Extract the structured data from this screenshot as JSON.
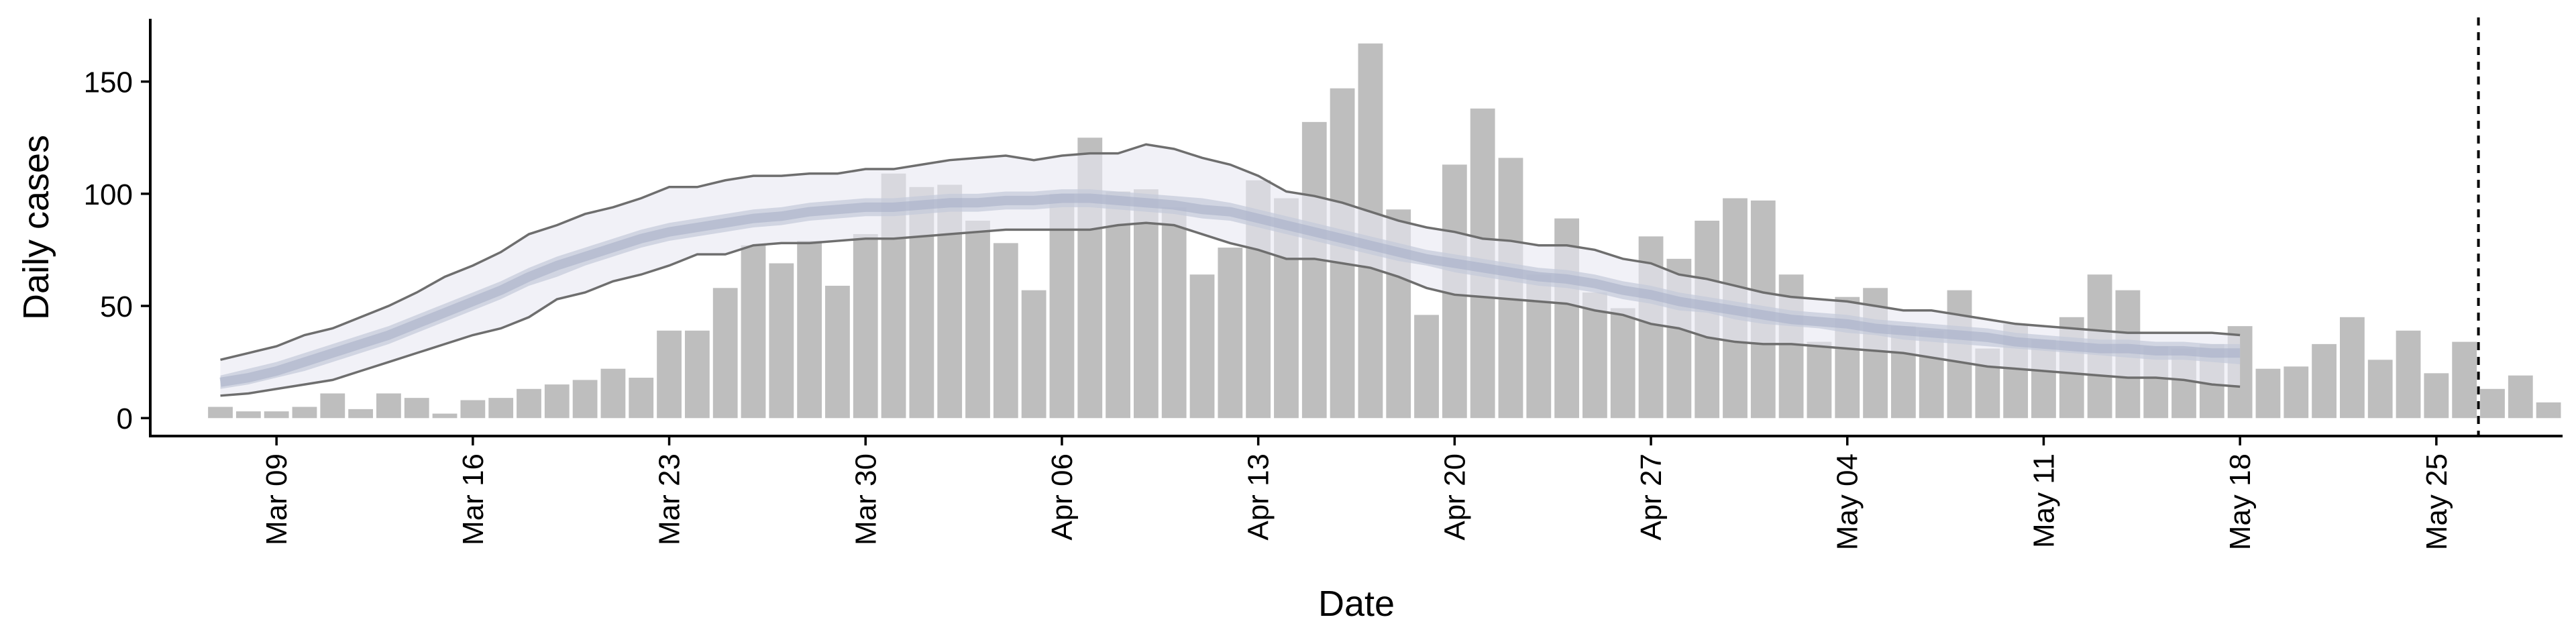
{
  "chart_data": {
    "type": "bar",
    "xlabel": "Date",
    "ylabel": "Daily cases",
    "ylim": [
      -8,
      178
    ],
    "yticks": [
      0,
      50,
      100,
      150
    ],
    "xlim_day": [
      63.5,
      149.5
    ],
    "xticks": [
      {
        "day": 68,
        "label": "Mar 09"
      },
      {
        "day": 75,
        "label": "Mar 16"
      },
      {
        "day": 82,
        "label": "Mar 23"
      },
      {
        "day": 89,
        "label": "Mar 30"
      },
      {
        "day": 96,
        "label": "Apr 06"
      },
      {
        "day": 103,
        "label": "Apr 13"
      },
      {
        "day": 110,
        "label": "Apr 20"
      },
      {
        "day": 117,
        "label": "Apr 27"
      },
      {
        "day": 124,
        "label": "May 04"
      },
      {
        "day": 131,
        "label": "May 11"
      },
      {
        "day": 138,
        "label": "May 18"
      },
      {
        "day": 145,
        "label": "May 25"
      }
    ],
    "bars": {
      "first_day": 66,
      "values": [
        5,
        3,
        3,
        5,
        11,
        4,
        11,
        9,
        2,
        8,
        9,
        13,
        15,
        17,
        22,
        18,
        39,
        39,
        58,
        77,
        69,
        79,
        59,
        82,
        109,
        103,
        104,
        88,
        78,
        57,
        100,
        125,
        101,
        102,
        94,
        64,
        76,
        106,
        98,
        132,
        147,
        167,
        93,
        46,
        113,
        138,
        116,
        64,
        89,
        56,
        49,
        81,
        71,
        88,
        98,
        97,
        64,
        34,
        54,
        58,
        41,
        39,
        57,
        31,
        42,
        35,
        45,
        64,
        57,
        32,
        31,
        33,
        41,
        22,
        23,
        33,
        45,
        26,
        39,
        20,
        34,
        13,
        19,
        7
      ],
      "color": "#bebebe"
    },
    "model_start_day": 66,
    "model_end_day": 137,
    "model_series": {
      "upper_90": [
        26,
        29,
        32,
        37,
        40,
        45,
        50,
        56,
        63,
        68,
        74,
        82,
        86,
        91,
        94,
        98,
        103,
        103,
        106,
        108,
        108,
        109,
        109,
        111,
        111,
        113,
        115,
        116,
        117,
        115,
        117,
        118,
        118,
        122,
        120,
        116,
        113,
        108,
        101,
        99,
        96,
        92,
        88,
        85,
        83,
        80,
        79,
        77,
        77,
        75,
        71,
        69,
        64,
        62,
        59,
        56,
        54,
        53,
        52,
        50,
        48,
        48,
        46,
        44,
        42,
        41,
        40,
        39,
        38,
        38,
        38,
        38,
        37
      ],
      "upper_50": [
        19,
        22,
        25,
        29,
        33,
        37,
        41,
        46,
        51,
        56,
        61,
        67,
        72,
        76,
        80,
        84,
        87,
        89,
        91,
        93,
        94,
        96,
        97,
        98,
        98,
        99,
        100,
        100,
        101,
        101,
        102,
        102,
        101,
        100,
        99,
        98,
        96,
        93,
        90,
        87,
        84,
        81,
        78,
        75,
        73,
        71,
        69,
        67,
        66,
        64,
        61,
        59,
        56,
        54,
        52,
        50,
        48,
        47,
        46,
        44,
        43,
        42,
        41,
        40,
        38,
        37,
        36,
        35,
        35,
        34,
        34,
        33,
        33
      ],
      "median": [
        16,
        18,
        21,
        25,
        29,
        33,
        37,
        42,
        47,
        52,
        57,
        63,
        68,
        72,
        76,
        80,
        83,
        85,
        87,
        89,
        90,
        92,
        93,
        94,
        94,
        95,
        96,
        96,
        97,
        97,
        98,
        98,
        97,
        96,
        95,
        93,
        92,
        89,
        86,
        83,
        80,
        77,
        74,
        71,
        69,
        67,
        65,
        63,
        62,
        60,
        57,
        55,
        52,
        50,
        48,
        46,
        44,
        43,
        42,
        40,
        39,
        38,
        37,
        36,
        34,
        33,
        32,
        31,
        31,
        30,
        30,
        29,
        29
      ],
      "lower_50": [
        13,
        15,
        18,
        21,
        25,
        29,
        33,
        38,
        43,
        48,
        53,
        59,
        63,
        68,
        72,
        76,
        79,
        81,
        83,
        85,
        86,
        88,
        89,
        90,
        90,
        91,
        92,
        92,
        93,
        93,
        94,
        94,
        93,
        92,
        91,
        89,
        88,
        85,
        82,
        79,
        76,
        73,
        70,
        68,
        65,
        63,
        61,
        59,
        58,
        56,
        53,
        51,
        48,
        47,
        44,
        42,
        41,
        40,
        38,
        37,
        35,
        34,
        33,
        32,
        31,
        30,
        29,
        28,
        27,
        26,
        26,
        25,
        24
      ],
      "lower_90": [
        10,
        11,
        13,
        15,
        17,
        21,
        25,
        29,
        33,
        37,
        40,
        45,
        53,
        56,
        61,
        64,
        68,
        73,
        73,
        77,
        78,
        78,
        79,
        80,
        80,
        81,
        82,
        83,
        84,
        84,
        84,
        84,
        86,
        87,
        86,
        82,
        78,
        75,
        71,
        71,
        69,
        67,
        63,
        58,
        55,
        54,
        53,
        52,
        51,
        48,
        46,
        42,
        40,
        36,
        34,
        33,
        33,
        32,
        31,
        30,
        29,
        27,
        25,
        23,
        22,
        21,
        20,
        19,
        18,
        18,
        17,
        15,
        14
      ],
      "band_90_color": "#e8e9f2",
      "band_50_color": "#c5cad9",
      "median_color": "#a9b1c8",
      "line_color": "#6e6e6e"
    },
    "vline_day": 146.5,
    "vline_style": "dashed"
  }
}
